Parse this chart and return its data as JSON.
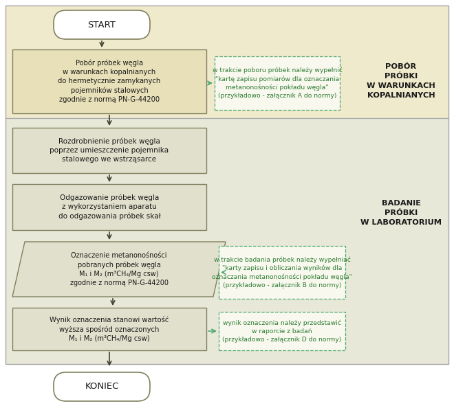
{
  "bg_color_top": "#f0eacc",
  "bg_color_bottom": "#e8e8d8",
  "box_fill_top": "#e8e0b8",
  "box_fill_bottom": "#e0e0cc",
  "box_edge": "#808060",
  "arrow_color": "#404030",
  "green_text": "#2a7a30",
  "green_box_edge": "#50aa70",
  "side_label_color": "#1a1a1a",
  "start_end_fill": "#ffffff",
  "start_end_edge": "#808060",
  "white": "#ffffff",
  "start_text": "START",
  "end_text": "KONIEC",
  "box1_text": "Pobór próbek węgla\nw warunkach kopalnianych\ndo hermetycznie zamykanych\npojemników stalowych\nzgodnie z normą PN-G-44200",
  "box2_text": "Rozdrobnienie próbek węgla\npoprzez umieszczenie pojemnika\nstalowego we wstrząsarce",
  "box3_text": "Odgazowanie próbek węgla\nz wykorzystaniem aparatu\ndo odgazowania próbek skał",
  "box4_text": "Oznaczenie metanonośności\npobranych próbek węgla\nM₁ i M₂ (m³CH₄/Mg csw)\nzgodnie z normą PN-G-44200",
  "box5_text": "Wynik oznaczenia stanowi wartość\nwyższa spośród oznaczonych\nM₁ i M₂ (m³CH₄/Mg csw)",
  "note1_text": "w trakcie poboru próbek należy wypełnić\n\"kartę zapisu pomiarów dla oznaczania\nmetanonośności pokładu węgla\"\n(przykładowo - załącznik A do normy)",
  "note2_text": "w trakcie badania próbek należy wypełniać\n\"karty zapisu i obliczania wyników dla\noznaczania metanonośności pokładu węgla\"\n(przykładowo - załącznik B do normy)",
  "note3_text": "wynik oznaczenia należy przedstawić\nw raporcie z badań\n(przykładowo - załącznik D do normy)",
  "side1_text": "POBÓR\nPRÓBKI\nW WARUNKACH\nKOPALNIANYCH",
  "side2_text": "BADANIE\nPRÓBKI\nW LABORATORIUM",
  "fig_w": 6.6,
  "fig_h": 5.94,
  "dpi": 100
}
